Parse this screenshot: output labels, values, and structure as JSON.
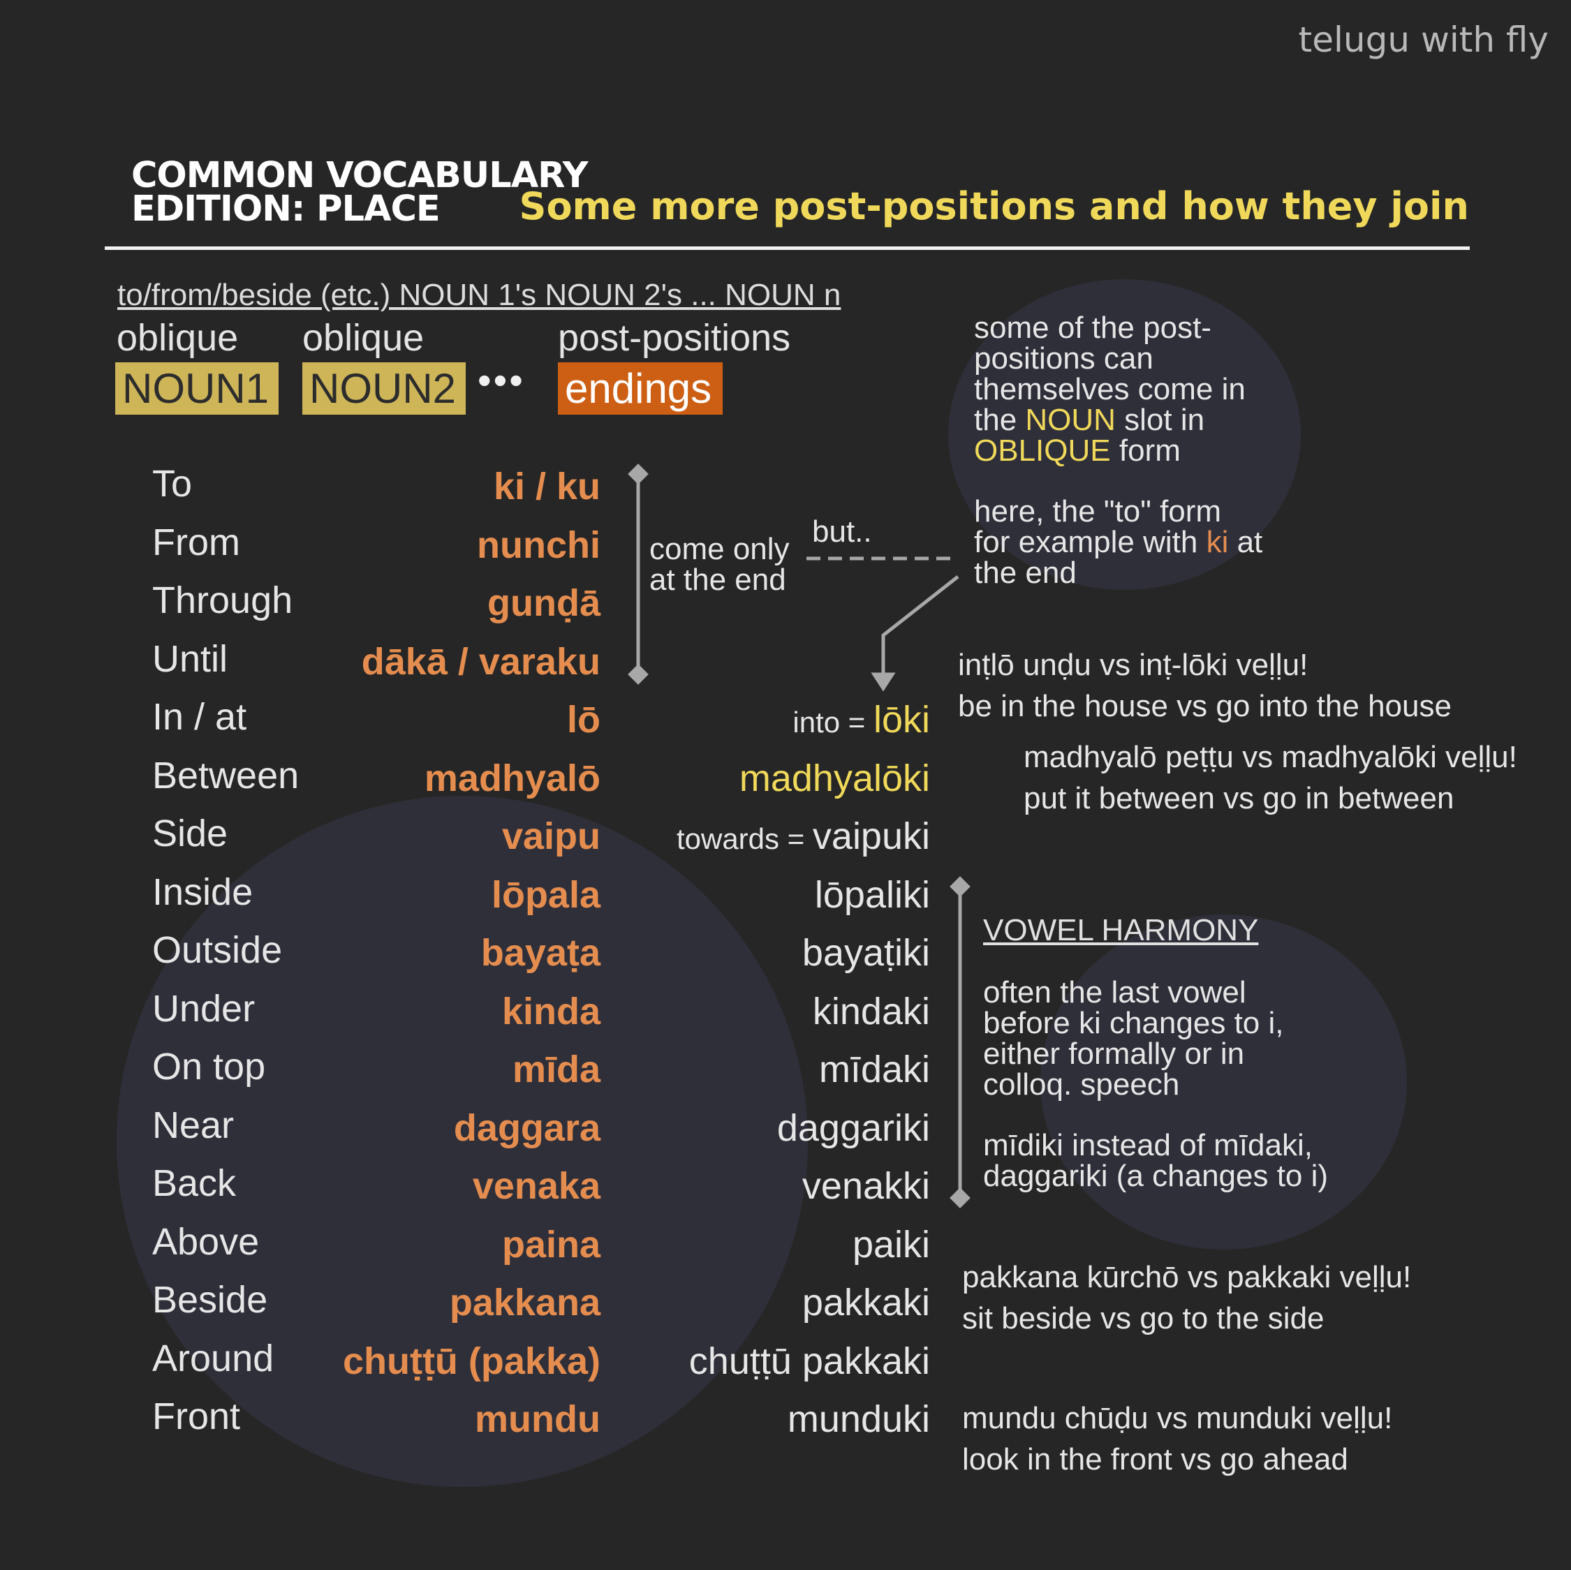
{
  "brand": "telugu with fly",
  "title_line1": "COMMON VOCABULARY",
  "title_line2": "EDITION: PLACE",
  "subtitle": "Some more post-positions and how they join",
  "formula": "to/from/beside (etc.) NOUN 1's NOUN 2's ... NOUN n",
  "headers": {
    "oblique1": "oblique",
    "oblique2": "oblique",
    "postpositions": "post-positions"
  },
  "chips": {
    "noun1": "NOUN1",
    "noun2": "NOUN2",
    "dots": "•••",
    "endings": "endings"
  },
  "rows": [
    {
      "en": "To",
      "te": "ki / ku",
      "join": "",
      "join_prefix": ""
    },
    {
      "en": "From",
      "te": "nunchi",
      "join": "",
      "join_prefix": ""
    },
    {
      "en": "Through",
      "te": "gunḍā",
      "join": "",
      "join_prefix": ""
    },
    {
      "en": "Until",
      "te": "dākā / varaku",
      "join": "",
      "join_prefix": ""
    },
    {
      "en": "In / at",
      "te": "lō",
      "join": "lōki",
      "join_prefix": "into = "
    },
    {
      "en": "Between",
      "te": "madhyalō",
      "join": "madhyalōki",
      "join_prefix": ""
    },
    {
      "en": "Side",
      "te": "vaipu",
      "join": "vaipuki",
      "join_prefix": "towards = "
    },
    {
      "en": "Inside",
      "te": "lōpala",
      "join": "lōpaliki",
      "join_prefix": ""
    },
    {
      "en": "Outside",
      "te": "bayaṭa",
      "join": "bayaṭiki",
      "join_prefix": ""
    },
    {
      "en": "Under",
      "te": "kinda",
      "join": "kindaki",
      "join_prefix": ""
    },
    {
      "en": "On top",
      "te": "mīda",
      "join": "mīdaki",
      "join_prefix": ""
    },
    {
      "en": "Near",
      "te": "daggara",
      "join": "daggariki",
      "join_prefix": ""
    },
    {
      "en": "Back",
      "te": "venaka",
      "join": "venakki",
      "join_prefix": ""
    },
    {
      "en": "Above",
      "te": "paina",
      "join": "paiki",
      "join_prefix": ""
    },
    {
      "en": "Beside",
      "te": "pakkana",
      "join": "pakkaki",
      "join_prefix": ""
    },
    {
      "en": "Around",
      "te": "chuṭṭū (pakka)",
      "join": "chuṭṭū pakkaki",
      "join_prefix": ""
    },
    {
      "en": "Front",
      "te": "mundu",
      "join": "munduki",
      "join_prefix": ""
    }
  ],
  "bracket_note": {
    "line1": "come only",
    "line2": "at the end"
  },
  "but_label": "but..",
  "note1": {
    "line1": "some of the post-",
    "line2": "positions can",
    "line3": "themselves come in",
    "line4_pre": "the ",
    "line4_hl": "NOUN",
    "line4_post": " slot in",
    "line5_hl": "OBLIQUE",
    "line5_post": " form"
  },
  "note2": {
    "line1": "here, the \"to\" form",
    "line2_pre": "for example with ",
    "line2_hl": "ki",
    "line2_post": " at",
    "line3": "the end"
  },
  "examples": {
    "ex1_te": "inṭlō unḍu vs inṭ-lōki veḷḷu!",
    "ex1_en": "be in the house vs go into the house",
    "ex2_te": "madhyalō peṭṭu vs madhyalōki veḷḷu!",
    "ex2_en": "put it between vs go in between",
    "ex3_te": "pakkana kūrchō vs pakkaki veḷḷu!",
    "ex3_en": "sit beside vs go to the side",
    "ex4_te": "mundu chūḍu vs munduki veḷḷu!",
    "ex4_en": "look in the front vs go ahead"
  },
  "vowel_harmony": {
    "title": "VOWEL HARMONY",
    "line1": "often the last vowel",
    "line2": "before ki changes to i,",
    "line3": "either formally or in",
    "line4": "colloq. speech",
    "line5": "mīdiki instead of mīdaki,",
    "line6": "daggariki (a changes to i)"
  },
  "colors": {
    "background": "#262626",
    "accent_yellow": "#f0d95a",
    "accent_orange": "#e58d4f",
    "noun_chip": "#cdb558",
    "ending_chip": "#cd5f15",
    "circle": "#2f2f3a"
  }
}
